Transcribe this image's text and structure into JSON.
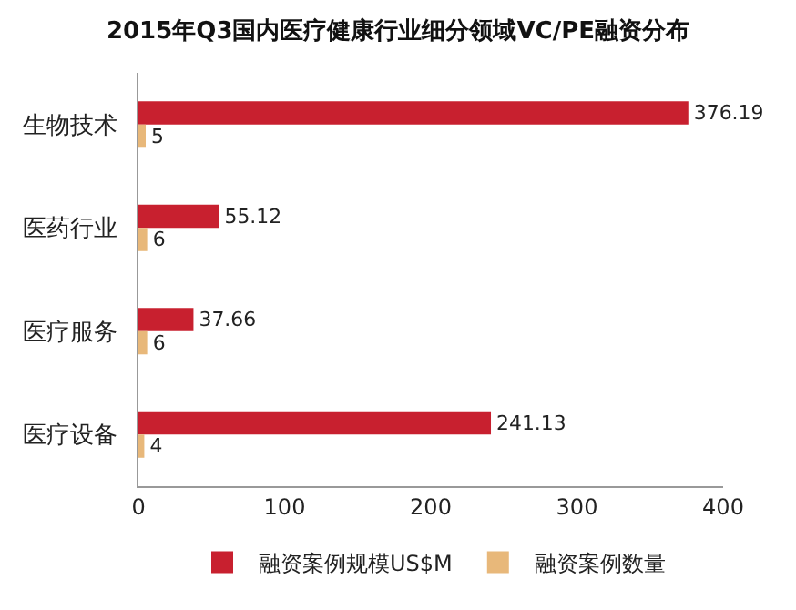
{
  "chart_data": {
    "type": "bar",
    "orientation": "horizontal",
    "title": "2015年Q3国内医疗健康行业细分领域VC/PE融资分布",
    "categories": [
      "生物技术",
      "医药行业",
      "医疗服务",
      "医疗设备"
    ],
    "series": [
      {
        "name": "融资案例规模US$M",
        "color": "#c8202f",
        "values": [
          376.19,
          55.12,
          37.66,
          241.13
        ]
      },
      {
        "name": "融资案例数量",
        "color": "#e8b87a",
        "values": [
          5,
          6,
          6,
          4
        ]
      }
    ],
    "xlim": [
      0,
      400
    ],
    "xticks": [
      0,
      100,
      200,
      300,
      400
    ],
    "data_labels": true,
    "legend": "bottom"
  }
}
